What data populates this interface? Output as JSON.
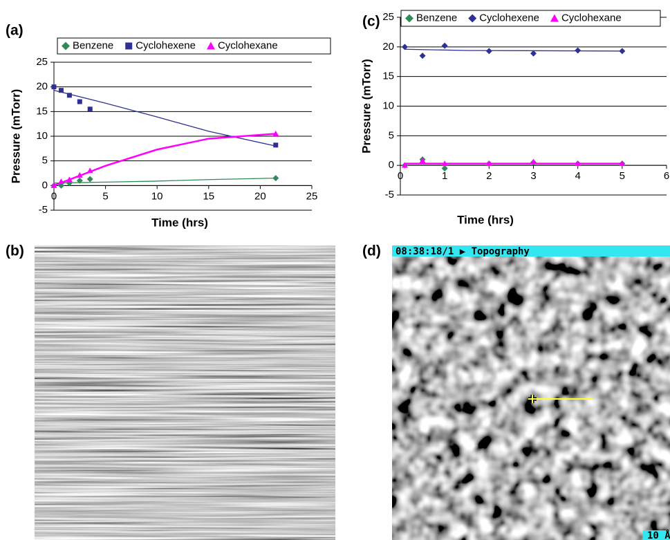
{
  "chart_data": [
    {
      "type": "scatter",
      "panel_label": "(a)",
      "x_label": "Time (hrs)",
      "y_label": "Pressure (mTorr)",
      "xlim": [
        0,
        25
      ],
      "xticks": [
        0,
        5,
        10,
        15,
        20,
        25
      ],
      "ylim": [
        -5,
        25
      ],
      "yticks": [
        -5,
        0,
        5,
        10,
        15,
        20,
        25
      ],
      "grid": true,
      "legend": "top",
      "x": [
        0,
        0.7,
        1.5,
        2.5,
        3.5,
        21.5
      ],
      "series": [
        {
          "name": "Benzene",
          "color": "#2e8b57",
          "marker": "diamond",
          "values": [
            0,
            0,
            0.5,
            1,
            1.3,
            1.5
          ],
          "trendline": {
            "x": [
              0,
              5,
              10,
              15,
              21.5
            ],
            "values": [
              0.5,
              0.7,
              0.9,
              1.2,
              1.5
            ]
          }
        },
        {
          "name": "Cyclohexene",
          "color": "#2e3192",
          "marker": "square",
          "values": [
            20,
            19.3,
            18.3,
            17,
            15.5,
            8.2
          ],
          "trendline": {
            "x": [
              0,
              5,
              10,
              15,
              21.5
            ],
            "values": [
              19.3,
              16.7,
              13.9,
              11,
              8
            ]
          }
        },
        {
          "name": "Cyclohexane",
          "color": "#ff00ff",
          "marker": "triangle",
          "values": [
            0,
            0.8,
            1.2,
            2.1,
            3,
            10.5
          ],
          "trendline": {
            "x": [
              0,
              5,
              10,
              15,
              21.5
            ],
            "values": [
              0,
              4,
              7.3,
              9.5,
              10.5
            ]
          }
        }
      ]
    },
    {
      "type": "scatter",
      "panel_label": "(c)",
      "x_label": "Time (hrs)",
      "y_label": "Pressure (mTorr)",
      "xlim": [
        0,
        6
      ],
      "xticks": [
        0,
        1,
        2,
        3,
        4,
        5,
        6
      ],
      "ylim": [
        -5,
        25
      ],
      "yticks": [
        -5,
        0,
        5,
        10,
        15,
        20,
        25
      ],
      "grid": true,
      "legend": "top",
      "x": [
        0.1,
        0.5,
        1,
        2,
        3,
        4,
        5
      ],
      "series": [
        {
          "name": "Benzene",
          "color": "#2e8b57",
          "marker": "diamond",
          "values": [
            0,
            1,
            -0.5,
            0.3,
            0.5,
            0.3,
            0.3
          ],
          "trendline": {
            "x": [
              0.1,
              5
            ],
            "values": [
              0.3,
              0.3
            ]
          }
        },
        {
          "name": "Cyclohexene",
          "color": "#2e3192",
          "marker": "diamond",
          "values": [
            20,
            18.5,
            20.2,
            19.3,
            18.9,
            19.4,
            19.3
          ],
          "trendline": {
            "x": [
              0.1,
              1.5,
              5
            ],
            "values": [
              19.6,
              19.4,
              19.3
            ]
          }
        },
        {
          "name": "Cyclohexane",
          "color": "#ff00ff",
          "marker": "triangle",
          "values": [
            0,
            0.8,
            0.3,
            0.3,
            0.6,
            0.3,
            0.3
          ],
          "trendline": {
            "x": [
              0.1,
              5
            ],
            "values": [
              0.3,
              0.3
            ]
          }
        }
      ]
    }
  ],
  "images": [
    {
      "panel_label": "(b)"
    },
    {
      "panel_label": "(d)",
      "header": "08:38:18/1 ▶ Topography",
      "scale_label": "10 Å"
    }
  ]
}
